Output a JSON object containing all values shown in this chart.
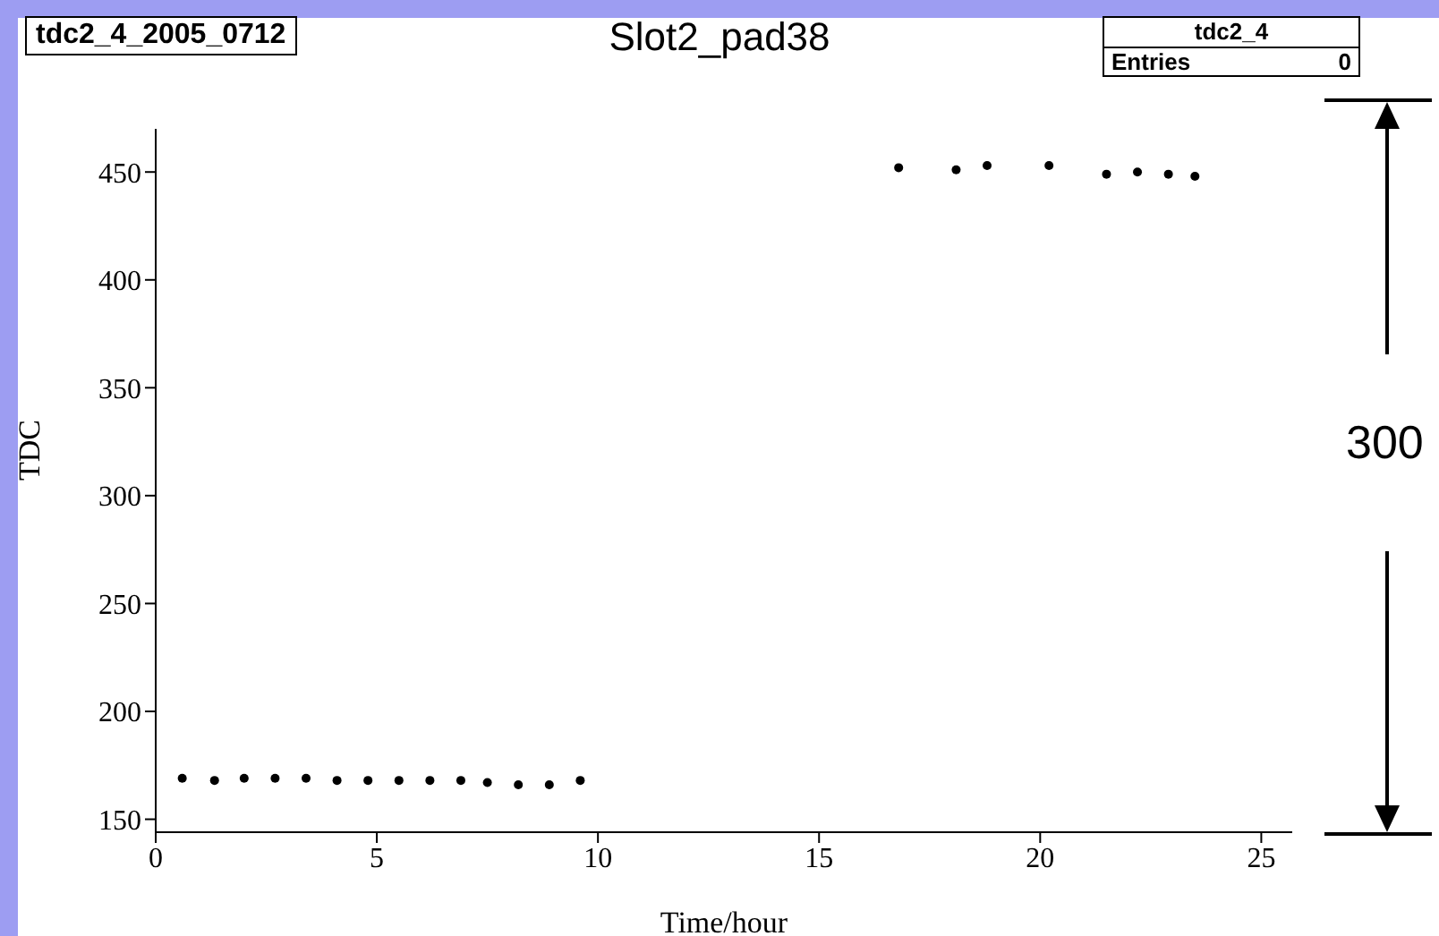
{
  "chart_data": {
    "type": "scatter",
    "title": "Slot2_pad38",
    "xlabel": "Time/hour",
    "ylabel": "TDC",
    "annotations": [
      "tdc2_4_2005_0712",
      "tdc2_4",
      "Entries",
      "0",
      "300"
    ],
    "series": [
      {
        "color": "#000000",
        "x": [
          0.6,
          1.33,
          2.0,
          2.7,
          3.4,
          4.1,
          4.8,
          5.5,
          6.2,
          6.9,
          7.5,
          8.2,
          8.9,
          9.6,
          16.8,
          18.1,
          18.8,
          20.2,
          21.5,
          22.2,
          22.9,
          23.5
        ],
        "values": [
          169,
          168,
          169,
          169,
          169,
          168,
          168,
          168,
          168,
          168,
          167,
          166,
          166,
          168,
          452,
          451,
          453,
          453,
          449,
          450,
          449,
          448
        ]
      }
    ],
    "xlim": [
      0,
      25.7
    ],
    "xticks": [
      0,
      5,
      10,
      15,
      20,
      25
    ],
    "ylim": [
      144,
      470
    ],
    "yticks": [
      150,
      200,
      250,
      300,
      350,
      400,
      450
    ],
    "marker": "circle",
    "grid": false
  }
}
